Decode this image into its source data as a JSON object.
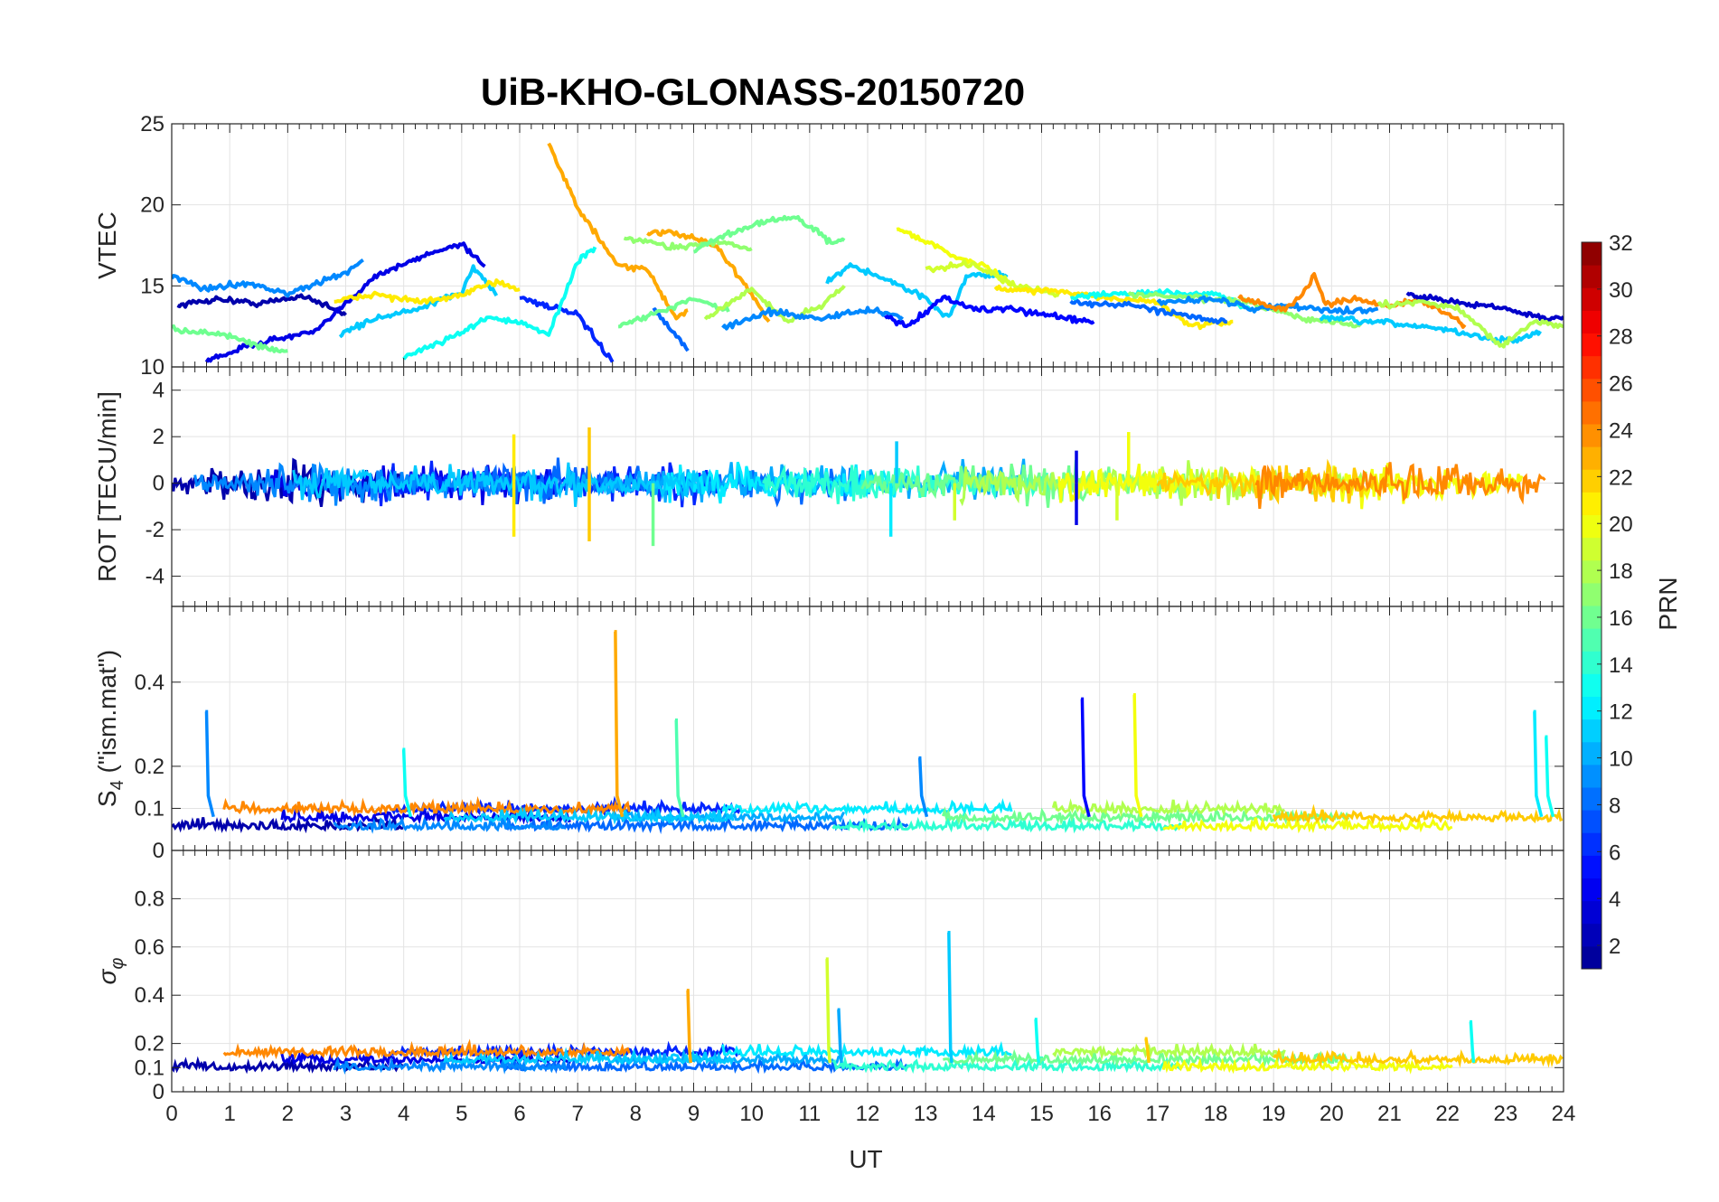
{
  "title": "UiB-KHO-GLONASS-20150720",
  "colors": {
    "grid": "#e3e3e3",
    "axis": "#262626",
    "colormap": [
      "#00008f",
      "#0000ff",
      "#0080ff",
      "#00ffff",
      "#80ff80",
      "#ffff00",
      "#ff8000",
      "#ff0000",
      "#800000"
    ]
  },
  "chart_data": {
    "type": "line",
    "x_axis": {
      "label": "UT",
      "range": [
        0,
        24
      ],
      "ticks": [
        0,
        1,
        2,
        3,
        4,
        5,
        6,
        7,
        8,
        9,
        10,
        11,
        12,
        13,
        14,
        15,
        16,
        17,
        18,
        19,
        20,
        21,
        22,
        23,
        24
      ]
    },
    "colorbar": {
      "label": "PRN",
      "range": [
        1,
        32
      ],
      "ticks": [
        2,
        4,
        6,
        8,
        10,
        12,
        14,
        16,
        18,
        20,
        22,
        24,
        26,
        28,
        30,
        32
      ]
    },
    "panels": [
      {
        "ylabel": "VTEC",
        "ylim": [
          10,
          25
        ],
        "yticks": [
          10,
          15,
          20,
          25
        ],
        "ytick_labels": [
          "10",
          "15",
          "20",
          "25"
        ],
        "series": [
          {
            "prn": 2,
            "points": [
              [
                0.1,
                13.8
              ],
              [
                0.8,
                14.2
              ],
              [
                1.5,
                13.9
              ],
              [
                2.3,
                14.4
              ],
              [
                3.0,
                13.2
              ]
            ]
          },
          {
            "prn": 4,
            "points": [
              [
                0.6,
                10.4
              ],
              [
                1.5,
                11.5
              ],
              [
                2.5,
                12.2
              ],
              [
                3.5,
                15.6
              ],
              [
                4.6,
                17.2
              ],
              [
                5.0,
                17.6
              ],
              [
                5.4,
                16.2
              ]
            ]
          },
          {
            "prn": 6,
            "points": [
              [
                6.0,
                14.3
              ],
              [
                7.0,
                13.2
              ],
              [
                7.6,
                10.3
              ]
            ]
          },
          {
            "prn": 8,
            "points": [
              [
                8.3,
                13.6
              ],
              [
                8.9,
                11.0
              ]
            ]
          },
          {
            "prn": 9,
            "points": [
              [
                0.0,
                15.6
              ],
              [
                0.6,
                14.8
              ],
              [
                1.3,
                15.2
              ],
              [
                2.0,
                14.5
              ],
              [
                3.0,
                15.8
              ],
              [
                3.3,
                16.6
              ]
            ]
          },
          {
            "prn": 11,
            "points": [
              [
                2.9,
                12.0
              ],
              [
                3.5,
                13.0
              ],
              [
                4.2,
                13.5
              ],
              [
                5.0,
                14.6
              ],
              [
                5.2,
                16.2
              ],
              [
                5.6,
                14.4
              ]
            ]
          },
          {
            "prn": 13,
            "points": [
              [
                4.0,
                10.6
              ],
              [
                4.8,
                11.8
              ],
              [
                5.5,
                13.1
              ],
              [
                6.0,
                12.7
              ],
              [
                6.5,
                12.0
              ],
              [
                7.0,
                16.5
              ],
              [
                7.3,
                17.4
              ]
            ]
          },
          {
            "prn": 16,
            "points": [
              [
                0.0,
                12.3
              ],
              [
                0.9,
                12.0
              ],
              [
                1.7,
                11.1
              ],
              [
                2.0,
                11.0
              ]
            ]
          },
          {
            "prn": 21,
            "points": [
              [
                2.8,
                14.0
              ],
              [
                3.5,
                14.5
              ],
              [
                4.3,
                14.0
              ],
              [
                5.0,
                14.4
              ],
              [
                5.6,
                15.3
              ],
              [
                6.0,
                14.8
              ]
            ]
          },
          {
            "prn": 23,
            "points": [
              [
                6.5,
                23.8
              ],
              [
                7.0,
                19.8
              ],
              [
                7.7,
                16.2
              ],
              [
                8.2,
                16.0
              ],
              [
                8.7,
                13.0
              ],
              [
                8.9,
                13.5
              ]
            ]
          },
          {
            "prn": 23,
            "points": [
              [
                8.2,
                18.3
              ],
              [
                8.8,
                18.2
              ],
              [
                9.4,
                17.4
              ],
              [
                9.9,
                15.0
              ],
              [
                10.3,
                12.8
              ]
            ]
          },
          {
            "prn": 16,
            "points": [
              [
                7.7,
                12.5
              ],
              [
                8.5,
                13.5
              ],
              [
                9.0,
                14.2
              ],
              [
                9.6,
                13.4
              ]
            ]
          },
          {
            "prn": 17,
            "points": [
              [
                7.8,
                18.0
              ],
              [
                8.6,
                17.4
              ],
              [
                9.5,
                17.7
              ],
              [
                10.0,
                17.3
              ]
            ]
          },
          {
            "prn": 16,
            "points": [
              [
                9.0,
                17.2
              ],
              [
                9.6,
                18.2
              ],
              [
                10.2,
                19.0
              ],
              [
                10.8,
                19.2
              ],
              [
                11.4,
                17.6
              ],
              [
                11.6,
                17.8
              ]
            ]
          },
          {
            "prn": 18,
            "points": [
              [
                9.2,
                13.0
              ],
              [
                10.0,
                14.8
              ],
              [
                10.6,
                12.8
              ],
              [
                11.2,
                13.8
              ],
              [
                11.6,
                15.0
              ]
            ]
          },
          {
            "prn": 9,
            "points": [
              [
                9.5,
                12.4
              ],
              [
                10.3,
                13.4
              ],
              [
                11.2,
                13.0
              ],
              [
                12.0,
                13.5
              ],
              [
                12.6,
                13.1
              ]
            ]
          },
          {
            "prn": 11,
            "points": [
              [
                11.3,
                15.2
              ],
              [
                11.7,
                16.3
              ],
              [
                12.3,
                15.4
              ],
              [
                12.9,
                14.5
              ],
              [
                13.4,
                13.0
              ],
              [
                13.7,
                15.6
              ],
              [
                14.4,
                15.7
              ]
            ]
          },
          {
            "prn": 5,
            "points": [
              [
                12.3,
                13.1
              ],
              [
                12.7,
                12.5
              ],
              [
                13.3,
                14.3
              ],
              [
                13.8,
                13.6
              ],
              [
                14.6,
                13.5
              ],
              [
                15.1,
                13.2
              ],
              [
                15.9,
                12.8
              ]
            ]
          },
          {
            "prn": 20,
            "points": [
              [
                12.5,
                18.5
              ],
              [
                13.0,
                17.8
              ],
              [
                13.5,
                16.8
              ],
              [
                14.0,
                16.3
              ],
              [
                14.5,
                15.0
              ]
            ]
          },
          {
            "prn": 19,
            "points": [
              [
                13.0,
                16.0
              ],
              [
                13.8,
                16.4
              ],
              [
                14.5,
                15.1
              ],
              [
                15.3,
                14.4
              ]
            ]
          },
          {
            "prn": 21,
            "points": [
              [
                14.2,
                14.8
              ],
              [
                15.3,
                14.7
              ],
              [
                16.2,
                14.2
              ],
              [
                17.0,
                14.0
              ],
              [
                17.6,
                12.5
              ],
              [
                18.3,
                12.8
              ]
            ]
          },
          {
            "prn": 8,
            "points": [
              [
                15.5,
                14.0
              ],
              [
                16.5,
                13.8
              ],
              [
                17.5,
                13.2
              ],
              [
                18.2,
                12.8
              ]
            ]
          },
          {
            "prn": 13,
            "points": [
              [
                15.5,
                14.3
              ],
              [
                16.8,
                14.6
              ],
              [
                18.0,
                14.5
              ],
              [
                18.6,
                13.5
              ]
            ]
          },
          {
            "prn": 17,
            "points": [
              [
                16.5,
                14.5
              ],
              [
                17.5,
                14.3
              ],
              [
                18.5,
                14.0
              ],
              [
                19.5,
                13.0
              ],
              [
                20.5,
                12.5
              ]
            ]
          },
          {
            "prn": 9,
            "points": [
              [
                17.0,
                14.0
              ],
              [
                18.0,
                14.2
              ],
              [
                18.6,
                13.6
              ],
              [
                19.4,
                13.8
              ],
              [
                20.0,
                13.4
              ],
              [
                20.8,
                13.6
              ]
            ]
          },
          {
            "prn": 24,
            "points": [
              [
                18.4,
                14.3
              ],
              [
                19.2,
                13.5
              ],
              [
                19.5,
                14.5
              ],
              [
                19.7,
                15.7
              ],
              [
                19.9,
                13.8
              ],
              [
                20.4,
                14.2
              ],
              [
                21.0,
                13.7
              ],
              [
                21.5,
                14.2
              ],
              [
                22.3,
                12.6
              ]
            ]
          },
          {
            "prn": 3,
            "points": [
              [
                21.3,
                14.5
              ],
              [
                21.8,
                14.2
              ],
              [
                22.5,
                13.8
              ],
              [
                23.0,
                13.6
              ],
              [
                23.6,
                13.0
              ],
              [
                24.0,
                13.1
              ]
            ]
          },
          {
            "prn": 11,
            "points": [
              [
                19.8,
                13.0
              ],
              [
                20.6,
                12.8
              ],
              [
                21.3,
                12.6
              ],
              [
                22.0,
                12.3
              ],
              [
                22.6,
                11.8
              ],
              [
                23.2,
                11.6
              ],
              [
                23.6,
                12.2
              ]
            ]
          },
          {
            "prn": 18,
            "points": [
              [
                20.8,
                13.8
              ],
              [
                21.6,
                14.0
              ],
              [
                22.2,
                13.6
              ],
              [
                22.6,
                12.4
              ],
              [
                22.9,
                11.2
              ],
              [
                23.5,
                12.8
              ],
              [
                24.0,
                12.5
              ]
            ]
          }
        ]
      },
      {
        "ylabel": "ROT [TECU/min]",
        "ylim": [
          -5.3,
          5
        ],
        "yticks": [
          -4,
          -2,
          0,
          2,
          4
        ],
        "ytick_labels": [
          "-4",
          "-2",
          "0",
          "2",
          "4"
        ],
        "spikes": [
          [
            5.9,
            2.1,
            21
          ],
          [
            5.9,
            -2.3,
            21
          ],
          [
            7.2,
            2.4,
            22
          ],
          [
            7.2,
            -2.5,
            22
          ],
          [
            8.3,
            -2.7,
            16
          ],
          [
            12.4,
            -2.3,
            12
          ],
          [
            15.6,
            1.4,
            4
          ],
          [
            15.6,
            -1.8,
            4
          ],
          [
            16.5,
            2.2,
            20
          ],
          [
            16.3,
            -1.6,
            19
          ],
          [
            12.5,
            1.8,
            11
          ],
          [
            13.5,
            -1.6,
            19
          ]
        ]
      },
      {
        "ylabel": "S_4 (\"ism.mat\")",
        "ylim": [
          0,
          0.58
        ],
        "yticks": [
          0,
          0.1,
          0.2,
          0.4
        ],
        "ytick_labels": [
          "0",
          "0.1",
          "0.2",
          "0.4"
        ],
        "peaks": [
          [
            0.6,
            0.33,
            9
          ],
          [
            4.0,
            0.24,
            13
          ],
          [
            7.65,
            0.52,
            23
          ],
          [
            8.7,
            0.31,
            15
          ],
          [
            12.9,
            0.22,
            9
          ],
          [
            15.7,
            0.36,
            5
          ],
          [
            16.6,
            0.37,
            20
          ],
          [
            23.5,
            0.33,
            12
          ],
          [
            23.7,
            0.27,
            13
          ]
        ]
      },
      {
        "ylabel": "σ_φ",
        "ylim": [
          0,
          1
        ],
        "yticks": [
          0,
          0.1,
          0.2,
          0.4,
          0.6,
          0.8
        ],
        "ytick_labels": [
          "0",
          "0.1",
          "0.2",
          "0.4",
          "0.6",
          "0.8"
        ],
        "peaks": [
          [
            8.9,
            0.42,
            23
          ],
          [
            11.3,
            0.55,
            19
          ],
          [
            11.5,
            0.34,
            10
          ],
          [
            13.4,
            0.66,
            11
          ],
          [
            14.9,
            0.3,
            13
          ],
          [
            16.8,
            0.22,
            22
          ],
          [
            22.4,
            0.29,
            13
          ]
        ]
      }
    ]
  }
}
